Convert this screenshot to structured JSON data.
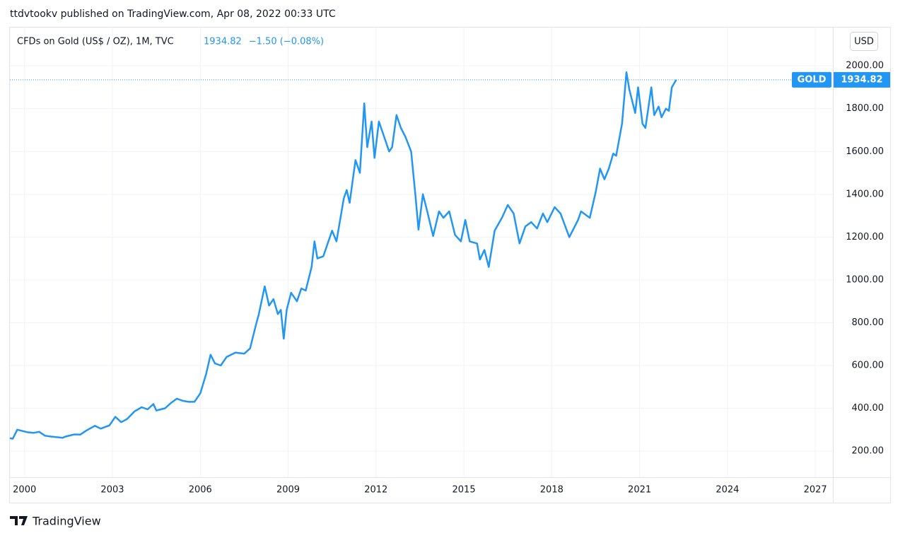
{
  "header": {
    "publisher": "ttdvtookv published on TradingView.com, Apr 08, 2022 00:33 UTC",
    "symbol": "CFDs on Gold (US$ / OZ), 1M, TVC",
    "change": "−1.50 (−0.08%)",
    "currency": "USD"
  },
  "footer": {
    "brand": "TradingView"
  },
  "chart_data": {
    "type": "line",
    "x": [
      1999.5,
      1999.6,
      1999.75,
      1999.9,
      2000.1,
      2000.3,
      2000.5,
      2000.7,
      2000.9,
      2001.1,
      2001.3,
      2001.4,
      2001.7,
      2001.9,
      2002.1,
      2002.4,
      2002.6,
      2002.9,
      2003.1,
      2003.3,
      2003.5,
      2003.75,
      2004.0,
      2004.2,
      2004.4,
      2004.5,
      2004.8,
      2005.0,
      2005.2,
      2005.4,
      2005.6,
      2005.8,
      2006.0,
      2006.2,
      2006.35,
      2006.5,
      2006.7,
      2006.9,
      2007.2,
      2007.5,
      2007.7,
      2007.9,
      2008.0,
      2008.2,
      2008.35,
      2008.5,
      2008.65,
      2008.75,
      2008.85,
      2008.95,
      2009.1,
      2009.3,
      2009.45,
      2009.6,
      2009.8,
      2009.9,
      2010.0,
      2010.2,
      2010.5,
      2010.65,
      2010.9,
      2011.0,
      2011.1,
      2011.3,
      2011.45,
      2011.6,
      2011.7,
      2011.85,
      2011.95,
      2012.1,
      2012.3,
      2012.45,
      2012.55,
      2012.7,
      2012.85,
      2013.0,
      2013.2,
      2013.35,
      2013.45,
      2013.6,
      2013.75,
      2013.95,
      2014.15,
      2014.3,
      2014.5,
      2014.7,
      2014.9,
      2015.05,
      2015.2,
      2015.45,
      2015.55,
      2015.7,
      2015.85,
      2016.05,
      2016.3,
      2016.5,
      2016.7,
      2016.9,
      2017.1,
      2017.3,
      2017.5,
      2017.7,
      2017.85,
      2018.1,
      2018.3,
      2018.6,
      2018.9,
      2019.0,
      2019.3,
      2019.5,
      2019.65,
      2019.8,
      2019.95,
      2020.1,
      2020.2,
      2020.4,
      2020.55,
      2020.65,
      2020.85,
      2020.95,
      2021.1,
      2021.2,
      2021.4,
      2021.5,
      2021.65,
      2021.75,
      2021.9,
      2022.0,
      2022.1,
      2022.25
    ],
    "series": [
      {
        "name": "GOLD",
        "color": "#2196f3",
        "values": [
          260,
          258,
          300,
          295,
          288,
          285,
          290,
          272,
          268,
          265,
          262,
          268,
          278,
          277,
          295,
          318,
          305,
          320,
          360,
          335,
          350,
          385,
          405,
          395,
          420,
          390,
          400,
          425,
          445,
          435,
          430,
          430,
          470,
          560,
          650,
          610,
          600,
          640,
          660,
          655,
          680,
          790,
          840,
          970,
          880,
          910,
          840,
          860,
          725,
          860,
          940,
          900,
          960,
          950,
          1060,
          1180,
          1100,
          1110,
          1230,
          1180,
          1380,
          1420,
          1360,
          1560,
          1500,
          1825,
          1620,
          1740,
          1570,
          1740,
          1660,
          1600,
          1620,
          1770,
          1710,
          1670,
          1600,
          1390,
          1235,
          1400,
          1320,
          1205,
          1320,
          1290,
          1320,
          1210,
          1180,
          1280,
          1180,
          1170,
          1095,
          1140,
          1060,
          1230,
          1290,
          1350,
          1310,
          1170,
          1250,
          1270,
          1240,
          1310,
          1270,
          1340,
          1310,
          1200,
          1280,
          1320,
          1290,
          1410,
          1520,
          1470,
          1520,
          1590,
          1580,
          1730,
          1970,
          1890,
          1780,
          1900,
          1730,
          1710,
          1900,
          1770,
          1810,
          1760,
          1800,
          1790,
          1900,
          1934.82
        ]
      }
    ],
    "xlim": [
      1999.5,
      2027.6
    ],
    "xticks": [
      2000,
      2003,
      2006,
      2009,
      2012,
      2015,
      2018,
      2021,
      2024,
      2027
    ],
    "ylim": [
      78,
      2179
    ],
    "yticks": [
      {
        "value": 200,
        "label": "200.00"
      },
      {
        "value": 400,
        "label": "400.00"
      },
      {
        "value": 600,
        "label": "600.00"
      },
      {
        "value": 800,
        "label": "800.00"
      },
      {
        "value": 1000,
        "label": "1000.00"
      },
      {
        "value": 1200,
        "label": "1200.00"
      },
      {
        "value": 1400,
        "label": "1400.00"
      },
      {
        "value": 1600,
        "label": "1600.00"
      },
      {
        "value": 1800,
        "label": "1800.00"
      },
      {
        "value": 2000,
        "label": "2000.00"
      }
    ],
    "grid": true
  }
}
